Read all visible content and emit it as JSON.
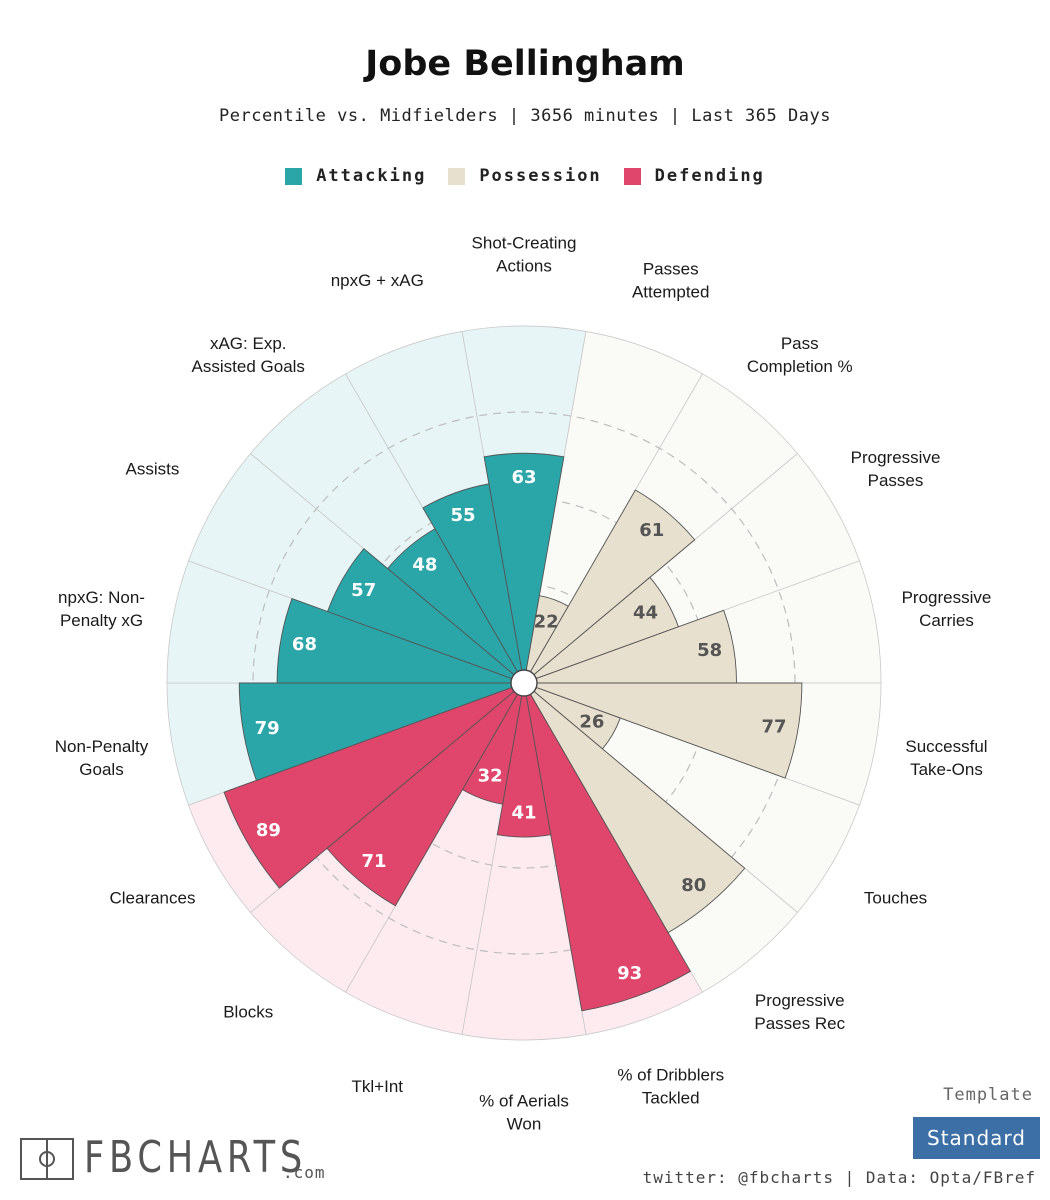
{
  "title": "Jobe Bellingham",
  "subtitle": "Percentile vs. Midfielders | 3656 minutes | Last 365 Days",
  "legend": [
    {
      "label": "Attacking",
      "color": "#2aa5a8"
    },
    {
      "label": "Possession",
      "color": "#e8e0cf"
    },
    {
      "label": "Defending",
      "color": "#e0456b"
    }
  ],
  "colors": {
    "attacking": "#2aa5a8",
    "attacking_bg": "#e8f5f6",
    "possession": "#e8e0cf",
    "possession_bg": "#fafaf7",
    "defending": "#e0456b",
    "defending_bg": "#fdebf0"
  },
  "chart_data": {
    "type": "polar-bar",
    "range": [
      0,
      100
    ],
    "categories": [
      "Shot-Creating Actions",
      "Passes Attempted",
      "Pass Completion %",
      "Progressive Passes",
      "Progressive Carries",
      "Successful Take-Ons",
      "Touches",
      "Progressive Passes Rec",
      "% of Dribblers Tackled",
      "% of Aerials Won",
      "Tkl+Int",
      "Blocks",
      "Clearances",
      "Non-Penalty Goals",
      "npxG: Non-Penalty xG",
      "Assists",
      "xAG: Exp. Assisted Goals",
      "npxG + xAG"
    ],
    "label_lines": [
      [
        "Shot-Creating",
        "Actions"
      ],
      [
        "Passes",
        "Attempted"
      ],
      [
        "Pass",
        "Completion %"
      ],
      [
        "Progressive",
        "Passes"
      ],
      [
        "Progressive",
        "Carries"
      ],
      [
        "Successful",
        "Take-Ons"
      ],
      [
        "Touches"
      ],
      [
        "Progressive",
        "Passes Rec"
      ],
      [
        "% of Dribblers",
        "Tackled"
      ],
      [
        "% of Aerials",
        "Won"
      ],
      [
        "Tkl+Int"
      ],
      [
        "Blocks"
      ],
      [
        "Clearances"
      ],
      [
        "Non-Penalty",
        "Goals"
      ],
      [
        "npxG: Non-",
        "Penalty xG"
      ],
      [
        "Assists"
      ],
      [
        "xAG: Exp.",
        "Assisted Goals"
      ],
      [
        "npxG + xAG"
      ]
    ],
    "groups": [
      "attacking",
      "possession",
      "possession",
      "possession",
      "possession",
      "possession",
      "possession",
      "possession",
      "defending",
      "defending",
      "defending",
      "defending",
      "defending",
      "attacking",
      "attacking",
      "attacking",
      "attacking",
      "attacking"
    ],
    "values": [
      63,
      22,
      61,
      44,
      58,
      77,
      26,
      80,
      93,
      41,
      32,
      71,
      89,
      79,
      68,
      57,
      48,
      55
    ],
    "gridlines": [
      25,
      50,
      75
    ]
  },
  "branding": {
    "logo_text": "FBCHARTS",
    "logo_suffix": ".com",
    "template_label": "Template",
    "template_value": "Standard",
    "footer": "twitter: @fbcharts | Data: Opta/FBref"
  }
}
